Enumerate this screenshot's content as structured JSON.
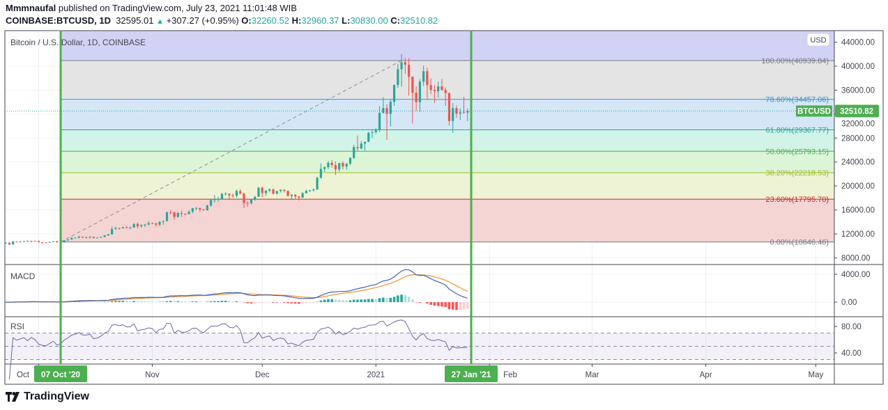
{
  "header": {
    "publisher": "Mmmnaufal",
    "published_text": "published on TradingView.com, July 23, 2021 11:01:48 WIB",
    "symbol": "COINBASE:BTCUSD, 1D",
    "last": "32595.01",
    "change": "+307.27 (+0.95%)",
    "o_label": "O:",
    "o": "32260.52",
    "h_label": "H:",
    "h": "32960.37",
    "l_label": "L:",
    "l": "30830.00",
    "c_label": "C:",
    "c": "32510.82"
  },
  "logo": {
    "text": "TradingView"
  },
  "chart_data": {
    "type": "candlestick",
    "title": "Bitcoin / U.S. Dollar, 1D, COINBASE",
    "currency": "USD",
    "last_price_symbol": "BTCUSD",
    "last_price": "32510.82",
    "ylim": [
      6890,
      45930
    ],
    "y_ticks": [
      "8000.00",
      "12000.00",
      "16000.00",
      "20000.00",
      "24000.00",
      "28000.00",
      "32000.00",
      "36000.00",
      "40000.00",
      "44000.00"
    ],
    "x_ticks": [
      {
        "label": "Oct",
        "date": "2020-10-01"
      },
      {
        "label": "Nov",
        "date": "2020-11-01"
      },
      {
        "label": "Dec",
        "date": "2020-12-01"
      },
      {
        "label": "2021",
        "date": "2021-01-01"
      },
      {
        "label": "Feb",
        "date": "2021-02-01"
      },
      {
        "label": "Mar",
        "date": "2021-03-01"
      },
      {
        "label": "Apr",
        "date": "2021-04-01"
      },
      {
        "label": "May",
        "date": "2021-05-01"
      }
    ],
    "markers": [
      {
        "date": "2020-10-07",
        "label": "07 Oct '20"
      },
      {
        "date": "2021-01-27",
        "label": "27 Jan '21"
      }
    ],
    "colors": {
      "up": "#26a69a",
      "down": "#ef5350",
      "marker": "#4caf50",
      "macd": "#3f5fb5",
      "signal": "#f0922b",
      "rsi": "#6c63a8"
    },
    "fib_retracement": {
      "start_date": "2020-10-07",
      "high_date": "2021-01-08",
      "levels": [
        {
          "label": "100.00%(40939.84)",
          "ratio": 1.0,
          "price": 40939.84,
          "line": "#787b86",
          "fill": "#e4e4e4"
        },
        {
          "label": "78.60%(34457.06)",
          "ratio": 0.786,
          "price": 34457.06,
          "line": "#3d8fc8",
          "fill": "#d5e7f6"
        },
        {
          "label": "61.80%(29367.77)",
          "ratio": 0.618,
          "price": 29367.77,
          "line": "#26a69a",
          "fill": "#d2f3e7"
        },
        {
          "label": "50.00%(25793.15)",
          "ratio": 0.5,
          "price": 25793.15,
          "line": "#4caf50",
          "fill": "#dbf5d6"
        },
        {
          "label": "38.20%(22218.53)",
          "ratio": 0.382,
          "price": 22218.53,
          "line": "#9cbf2b",
          "fill": "#eef3d5"
        },
        {
          "label": "23.60%(17795.70)",
          "ratio": 0.236,
          "price": 17795.7,
          "line": "#c62828",
          "fill": "#f5d4d4"
        },
        {
          "label": "0.00%(10646.46)",
          "ratio": 0.0,
          "price": 10646.46,
          "line": "#787b86",
          "fill": null
        }
      ],
      "above_fill": "#d2d2f4"
    },
    "candles": [
      [
        "2020-09-22",
        10420,
        10580,
        10360,
        10530
      ],
      [
        "2020-09-23",
        10530,
        10540,
        10140,
        10230
      ],
      [
        "2020-09-24",
        10230,
        10790,
        10200,
        10740
      ],
      [
        "2020-09-25",
        10740,
        10760,
        10600,
        10690
      ],
      [
        "2020-09-26",
        10690,
        10790,
        10650,
        10730
      ],
      [
        "2020-09-27",
        10730,
        10800,
        10630,
        10775
      ],
      [
        "2020-09-28",
        10775,
        10950,
        10660,
        10700
      ],
      [
        "2020-09-29",
        10700,
        10860,
        10640,
        10840
      ],
      [
        "2020-09-30",
        10840,
        10850,
        10680,
        10780
      ],
      [
        "2020-10-01",
        10780,
        10930,
        10500,
        10620
      ],
      [
        "2020-10-02",
        10620,
        10650,
        10370,
        10570
      ],
      [
        "2020-10-03",
        10570,
        10600,
        10500,
        10550
      ],
      [
        "2020-10-04",
        10550,
        10700,
        10520,
        10670
      ],
      [
        "2020-10-05",
        10670,
        10800,
        10600,
        10790
      ],
      [
        "2020-10-06",
        10790,
        10800,
        10540,
        10600
      ],
      [
        "2020-10-07",
        10600,
        10690,
        10570,
        10670
      ],
      [
        "2020-10-08",
        10670,
        10960,
        10530,
        10920
      ],
      [
        "2020-10-09",
        10920,
        11100,
        10830,
        11060
      ],
      [
        "2020-10-10",
        11060,
        11490,
        11060,
        11300
      ],
      [
        "2020-10-11",
        11300,
        11440,
        11270,
        11380
      ],
      [
        "2020-10-12",
        11380,
        11720,
        11240,
        11540
      ],
      [
        "2020-10-13",
        11540,
        11560,
        11300,
        11430
      ],
      [
        "2020-10-14",
        11430,
        11550,
        11280,
        11430
      ],
      [
        "2020-10-15",
        11430,
        11630,
        11270,
        11500
      ],
      [
        "2020-10-16",
        11500,
        11540,
        11230,
        11320
      ],
      [
        "2020-10-17",
        11320,
        11400,
        11300,
        11370
      ],
      [
        "2020-10-18",
        11370,
        11500,
        11340,
        11500
      ],
      [
        "2020-10-19",
        11500,
        11820,
        11420,
        11750
      ],
      [
        "2020-10-20",
        11750,
        12000,
        11680,
        11920
      ],
      [
        "2020-10-21",
        11920,
        13200,
        11900,
        12820
      ],
      [
        "2020-10-22",
        12820,
        13200,
        12720,
        12990
      ],
      [
        "2020-10-23",
        12990,
        13030,
        12720,
        12930
      ],
      [
        "2020-10-24",
        12930,
        13160,
        12890,
        13130
      ],
      [
        "2020-10-25",
        13130,
        13350,
        12900,
        13030
      ],
      [
        "2020-10-26",
        13030,
        13240,
        12800,
        13070
      ],
      [
        "2020-10-27",
        13070,
        13790,
        13060,
        13650
      ],
      [
        "2020-10-28",
        13650,
        13860,
        12940,
        13280
      ],
      [
        "2020-10-29",
        13280,
        13640,
        12980,
        13460
      ],
      [
        "2020-10-30",
        13460,
        13680,
        13130,
        13560
      ],
      [
        "2020-10-31",
        13560,
        14100,
        13430,
        13800
      ],
      [
        "2020-11-01",
        13800,
        13900,
        13620,
        13760
      ],
      [
        "2020-11-02",
        13760,
        13830,
        13200,
        13550
      ],
      [
        "2020-11-03",
        13550,
        14070,
        13290,
        14030
      ],
      [
        "2020-11-04",
        14030,
        14260,
        13540,
        14150
      ],
      [
        "2020-11-05",
        14150,
        15750,
        14090,
        15590
      ],
      [
        "2020-11-06",
        15590,
        15980,
        15230,
        15580
      ],
      [
        "2020-11-07",
        15580,
        15770,
        14370,
        14830
      ],
      [
        "2020-11-08",
        14830,
        15660,
        14710,
        15480
      ],
      [
        "2020-11-09",
        15480,
        15850,
        14830,
        15330
      ],
      [
        "2020-11-10",
        15330,
        15470,
        15100,
        15310
      ],
      [
        "2020-11-11",
        15310,
        15960,
        15280,
        15700
      ],
      [
        "2020-11-12",
        15700,
        16340,
        15440,
        16290
      ],
      [
        "2020-11-13",
        16290,
        16480,
        15960,
        16330
      ],
      [
        "2020-11-14",
        16330,
        16330,
        15720,
        16080
      ],
      [
        "2020-11-15",
        16080,
        16140,
        15830,
        15960
      ],
      [
        "2020-11-16",
        15960,
        16880,
        15880,
        16730
      ],
      [
        "2020-11-17",
        16730,
        17860,
        16560,
        17660
      ],
      [
        "2020-11-18",
        17660,
        18480,
        17210,
        17800
      ],
      [
        "2020-11-19",
        17800,
        18180,
        17360,
        17820
      ],
      [
        "2020-11-20",
        17820,
        18810,
        17760,
        18680
      ],
      [
        "2020-11-21",
        18680,
        18970,
        18400,
        18720
      ],
      [
        "2020-11-22",
        18720,
        18750,
        17640,
        18430
      ],
      [
        "2020-11-23",
        18430,
        18770,
        18020,
        18370
      ],
      [
        "2020-11-24",
        18370,
        19420,
        18040,
        19160
      ],
      [
        "2020-11-25",
        19160,
        19490,
        18570,
        18740
      ],
      [
        "2020-11-26",
        18740,
        18920,
        16330,
        17150
      ],
      [
        "2020-11-27",
        17150,
        17470,
        16500,
        17140
      ],
      [
        "2020-11-28",
        17140,
        17870,
        16890,
        17720
      ],
      [
        "2020-11-29",
        17720,
        18350,
        17540,
        18180
      ],
      [
        "2020-11-30",
        18180,
        19860,
        18180,
        19700
      ],
      [
        "2020-12-01",
        19700,
        19920,
        18110,
        18790
      ],
      [
        "2020-12-02",
        18790,
        19330,
        18350,
        19220
      ],
      [
        "2020-12-03",
        19220,
        19580,
        18940,
        19450
      ],
      [
        "2020-12-04",
        19450,
        19530,
        18580,
        18700
      ],
      [
        "2020-12-05",
        18700,
        19180,
        18600,
        19150
      ],
      [
        "2020-12-06",
        19150,
        19420,
        18880,
        19370
      ],
      [
        "2020-12-07",
        19370,
        19420,
        18920,
        19180
      ],
      [
        "2020-12-08",
        19180,
        19280,
        18240,
        18330
      ],
      [
        "2020-12-09",
        18330,
        18650,
        17650,
        18550
      ],
      [
        "2020-12-10",
        18550,
        18570,
        17920,
        18260
      ],
      [
        "2020-12-11",
        18260,
        18290,
        17580,
        18060
      ],
      [
        "2020-12-12",
        18060,
        18950,
        18020,
        18800
      ],
      [
        "2020-12-13",
        18800,
        19420,
        18730,
        19170
      ],
      [
        "2020-12-14",
        19170,
        19340,
        19000,
        19280
      ],
      [
        "2020-12-15",
        19280,
        19570,
        19060,
        19440
      ],
      [
        "2020-12-16",
        19440,
        21560,
        19300,
        21370
      ],
      [
        "2020-12-17",
        21370,
        23770,
        21250,
        22850
      ],
      [
        "2020-12-18",
        22850,
        23290,
        22350,
        23130
      ],
      [
        "2020-12-19",
        23130,
        24170,
        22800,
        23870
      ],
      [
        "2020-12-20",
        23870,
        24300,
        23070,
        23480
      ],
      [
        "2020-12-21",
        23480,
        24100,
        21820,
        22750
      ],
      [
        "2020-12-22",
        22750,
        23840,
        22370,
        23830
      ],
      [
        "2020-12-23",
        23830,
        24110,
        22730,
        23250
      ],
      [
        "2020-12-24",
        23250,
        23790,
        22720,
        23720
      ],
      [
        "2020-12-25",
        23720,
        24790,
        23440,
        24690
      ],
      [
        "2020-12-26",
        24690,
        26870,
        24510,
        26490
      ],
      [
        "2020-12-27",
        26490,
        28420,
        25860,
        26280
      ],
      [
        "2020-12-28",
        26280,
        27500,
        26100,
        27080
      ],
      [
        "2020-12-29",
        27080,
        27400,
        25880,
        27370
      ],
      [
        "2020-12-30",
        27370,
        29020,
        27330,
        28880
      ],
      [
        "2020-12-31",
        28880,
        29300,
        28000,
        28990
      ],
      [
        "2021-01-01",
        28990,
        29680,
        28680,
        29400
      ],
      [
        "2021-01-02",
        29400,
        33300,
        29000,
        32200
      ],
      [
        "2021-01-03",
        32200,
        34810,
        32050,
        33000
      ],
      [
        "2021-01-04",
        33000,
        33620,
        27680,
        32030
      ],
      [
        "2021-01-05",
        32030,
        34480,
        29900,
        34040
      ],
      [
        "2021-01-06",
        34040,
        36940,
        33390,
        36860
      ],
      [
        "2021-01-07",
        36860,
        40380,
        36360,
        39490
      ],
      [
        "2021-01-08",
        39490,
        41950,
        36600,
        40670
      ],
      [
        "2021-01-09",
        40670,
        41380,
        38710,
        40240
      ],
      [
        "2021-01-10",
        40240,
        41350,
        35110,
        38240
      ],
      [
        "2021-01-11",
        38240,
        38260,
        30420,
        35570
      ],
      [
        "2021-01-12",
        35570,
        36630,
        32530,
        33990
      ],
      [
        "2021-01-13",
        33990,
        37850,
        32390,
        37400
      ],
      [
        "2021-01-14",
        37400,
        40100,
        36700,
        39150
      ],
      [
        "2021-01-15",
        39150,
        39750,
        34400,
        36830
      ],
      [
        "2021-01-16",
        36830,
        37960,
        35360,
        36030
      ],
      [
        "2021-01-17",
        36030,
        36850,
        33860,
        35820
      ],
      [
        "2021-01-18",
        35820,
        37400,
        34750,
        36630
      ],
      [
        "2021-01-19",
        36630,
        37860,
        35900,
        36020
      ],
      [
        "2021-01-20",
        36020,
        36440,
        33400,
        35500
      ],
      [
        "2021-01-21",
        35500,
        35600,
        30100,
        30840
      ],
      [
        "2021-01-22",
        30840,
        33860,
        28850,
        33010
      ],
      [
        "2021-01-23",
        33010,
        33450,
        31400,
        32080
      ],
      [
        "2021-01-24",
        32080,
        32960,
        30990,
        32280
      ],
      [
        "2021-01-25",
        32280,
        34880,
        32080,
        32260
      ],
      [
        "2021-01-26",
        32260.52,
        32960.37,
        30830,
        32510.82
      ]
    ],
    "macd": {
      "label": "MACD",
      "ylim": [
        -2100,
        5400
      ],
      "y_ticks": [
        {
          "v": 4000,
          "label": "4000.00"
        },
        {
          "v": 0,
          "label": "0.00"
        }
      ]
    },
    "rsi": {
      "label": "RSI",
      "ylim": [
        23.2,
        94.7
      ],
      "band": [
        30,
        70
      ],
      "mid": 50,
      "y_ticks": [
        {
          "v": 80,
          "label": "80.00"
        },
        {
          "v": 40,
          "label": "40.00"
        }
      ]
    }
  }
}
